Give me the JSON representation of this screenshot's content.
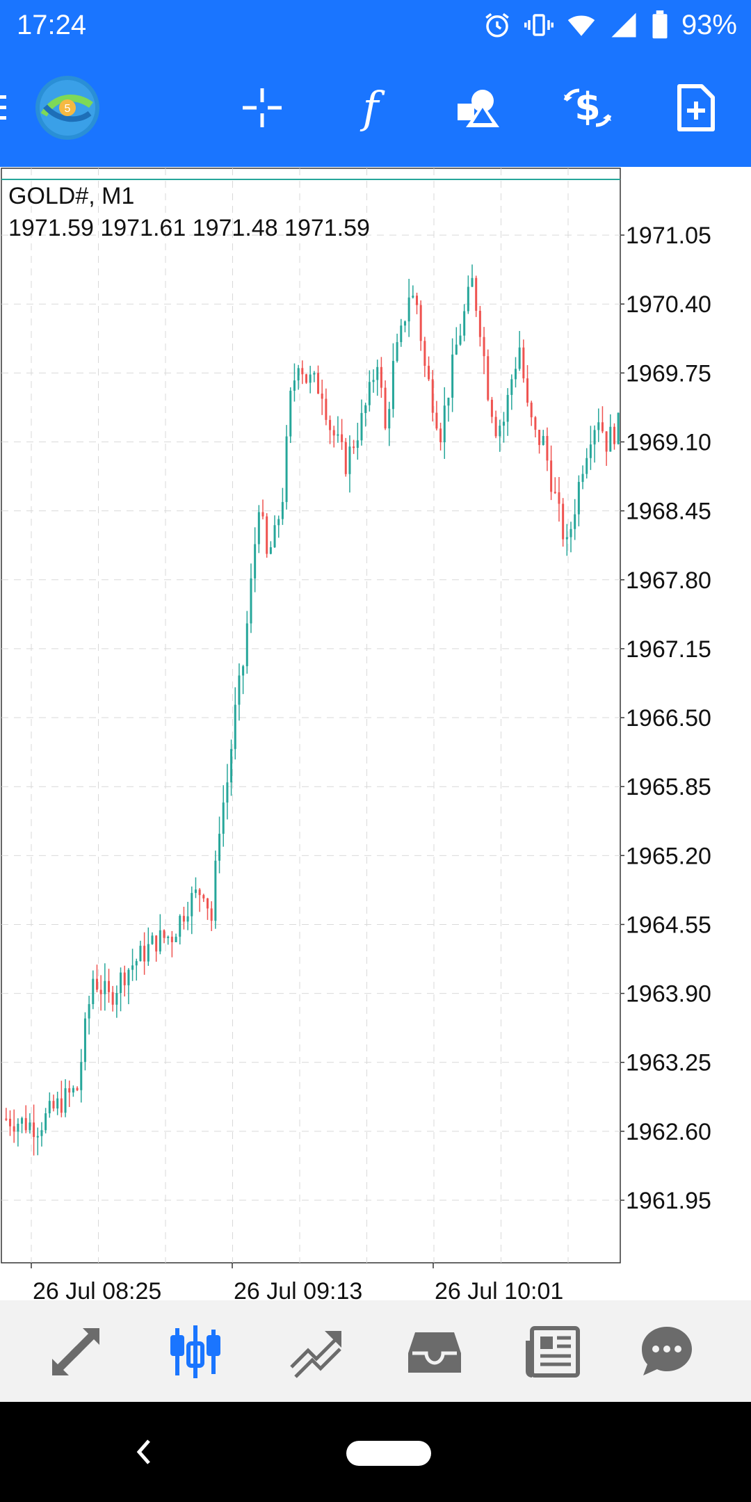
{
  "status_bar": {
    "time": "17:24",
    "battery": "93%",
    "icons": [
      "alarm-icon",
      "vibrate-icon",
      "wifi-icon",
      "signal-icon",
      "battery-icon"
    ]
  },
  "toolbar": {
    "buttons": [
      "menu-icon",
      "app-logo",
      "crosshair-icon",
      "indicator-icon",
      "objects-icon",
      "trade-icon",
      "new-order-icon"
    ]
  },
  "chart": {
    "symbol_label": "GOLD#, M1",
    "ohlc_label": "1971.59 1971.61 1971.48 1971.59",
    "up_color": "#26a69a",
    "down_color": "#ef5350",
    "grid_color": "#d9d9d9"
  },
  "chart_data": {
    "type": "candlestick",
    "title": "GOLD#, M1",
    "price_ticks": [
      "1971.05",
      "1970.40",
      "1969.75",
      "1969.10",
      "1968.45",
      "1967.80",
      "1967.15",
      "1966.50",
      "1965.85",
      "1965.20",
      "1964.55",
      "1963.90",
      "1963.25",
      "1962.60",
      "1961.95"
    ],
    "time_labels": [
      "26 Jul 08:25",
      "26 Jul 09:13",
      "26 Jul 10:01"
    ],
    "ylim": [
      1961.36,
      1971.68
    ],
    "grid": true,
    "close_path": [
      [
        0,
        1962.72
      ],
      [
        8,
        1962.65
      ],
      [
        14,
        1962.88
      ],
      [
        18,
        1963.0
      ],
      [
        20,
        1963.55
      ],
      [
        22,
        1964.05
      ],
      [
        26,
        1963.85
      ],
      [
        30,
        1964.1
      ],
      [
        34,
        1964.25
      ],
      [
        38,
        1964.4
      ],
      [
        42,
        1964.45
      ],
      [
        46,
        1964.75
      ],
      [
        50,
        1964.9
      ],
      [
        52,
        1964.6
      ],
      [
        54,
        1965.5
      ],
      [
        56,
        1965.9
      ],
      [
        58,
        1966.55
      ],
      [
        60,
        1967.0
      ],
      [
        62,
        1967.75
      ],
      [
        64,
        1968.55
      ],
      [
        66,
        1968.0
      ],
      [
        68,
        1968.2
      ],
      [
        70,
        1968.6
      ],
      [
        72,
        1969.5
      ],
      [
        74,
        1969.9
      ],
      [
        76,
        1969.7
      ],
      [
        80,
        1969.6
      ],
      [
        82,
        1969.25
      ],
      [
        86,
        1968.9
      ],
      [
        88,
        1969.1
      ],
      [
        90,
        1969.3
      ],
      [
        92,
        1969.55
      ],
      [
        94,
        1969.9
      ],
      [
        96,
        1969.2
      ],
      [
        98,
        1969.8
      ],
      [
        100,
        1970.1
      ],
      [
        102,
        1970.5
      ],
      [
        104,
        1970.4
      ],
      [
        106,
        1969.8
      ],
      [
        108,
        1969.5
      ],
      [
        110,
        1969.2
      ],
      [
        112,
        1969.6
      ],
      [
        114,
        1970.0
      ],
      [
        116,
        1970.3
      ],
      [
        118,
        1970.6
      ],
      [
        120,
        1970.2
      ],
      [
        122,
        1969.6
      ],
      [
        124,
        1969.25
      ],
      [
        126,
        1969.3
      ],
      [
        128,
        1969.7
      ],
      [
        130,
        1970.0
      ],
      [
        132,
        1969.4
      ],
      [
        134,
        1969.15
      ],
      [
        136,
        1969.1
      ],
      [
        140,
        1968.4
      ],
      [
        142,
        1968.1
      ],
      [
        144,
        1968.5
      ],
      [
        146,
        1968.9
      ],
      [
        148,
        1969.2
      ],
      [
        150,
        1969.35
      ],
      [
        152,
        1969.1
      ],
      [
        155,
        1969.25
      ]
    ]
  },
  "bottom_nav": {
    "items": [
      "quotes-icon",
      "chart-icon",
      "trade-icon",
      "history-icon",
      "news-icon",
      "chat-icon"
    ],
    "active": "chart-icon",
    "active_color": "#1a75ff",
    "inactive_color": "#6b6b6b"
  },
  "system_nav": {
    "items": [
      "back-icon",
      "home-pill"
    ]
  }
}
